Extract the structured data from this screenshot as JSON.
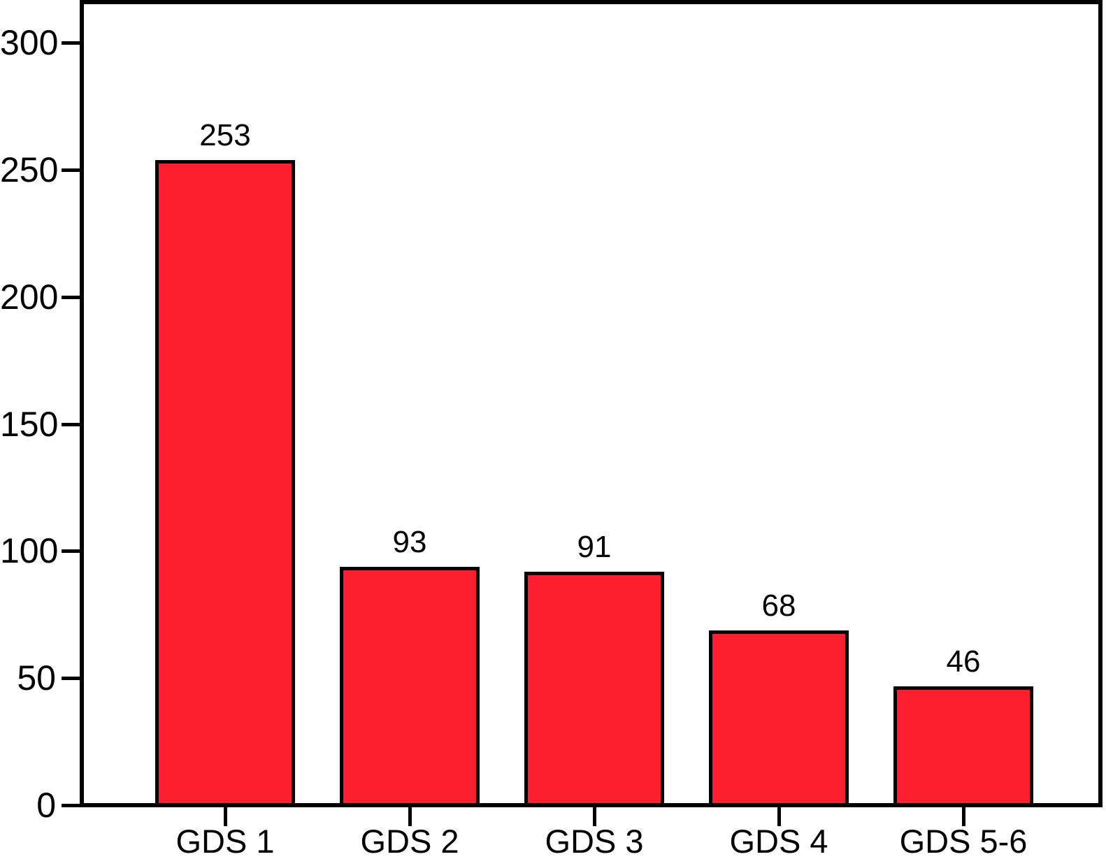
{
  "chart_data": {
    "type": "bar",
    "categories": [
      "GDS 1",
      "GDS 2",
      "GDS 3",
      "GDS 4",
      "GDS 5-6"
    ],
    "values": [
      253,
      93,
      91,
      68,
      46
    ],
    "bar_value_labels": [
      "253",
      "93",
      "91",
      "68",
      "46"
    ],
    "yticks": [
      0,
      50,
      100,
      150,
      200,
      250,
      300
    ],
    "ylim": [
      0,
      316
    ],
    "grid": false,
    "legend_position": "none",
    "bar_color": "#FC1F2D",
    "bar_border_color": "#000000",
    "axis_color": "#000000",
    "background_color": "#ffffff",
    "text_color": "#000000"
  }
}
